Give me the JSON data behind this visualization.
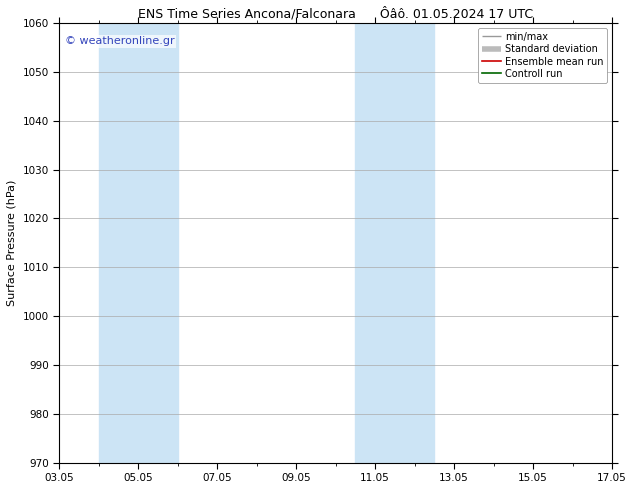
{
  "title": "ENS Time Series Ancona/Falconara      Ôâô. 01.05.2024 17 UTC",
  "ylabel": "Surface Pressure (hPa)",
  "ylim": [
    970,
    1060
  ],
  "yticks": [
    970,
    980,
    990,
    1000,
    1010,
    1020,
    1030,
    1040,
    1050,
    1060
  ],
  "xtick_labels": [
    "03.05",
    "05.05",
    "07.05",
    "09.05",
    "11.05",
    "13.05",
    "15.05",
    "17.05"
  ],
  "xtick_positions": [
    0,
    2,
    4,
    6,
    8,
    10,
    12,
    14
  ],
  "xlim": [
    0,
    14
  ],
  "shaded_bands": [
    {
      "x_start": 1.0,
      "x_end": 3.0,
      "color": "#cce4f5"
    },
    {
      "x_start": 7.5,
      "x_end": 9.5,
      "color": "#cce4f5"
    }
  ],
  "watermark_text": "© weatheronline.gr",
  "watermark_color": "#3344bb",
  "watermark_fontsize": 8,
  "legend_entries": [
    {
      "label": "min/max",
      "color": "#999999",
      "lw": 1.0
    },
    {
      "label": "Standard deviation",
      "color": "#bbbbbb",
      "lw": 4
    },
    {
      "label": "Ensemble mean run",
      "color": "#cc0000",
      "lw": 1.2
    },
    {
      "label": "Controll run",
      "color": "#006600",
      "lw": 1.2
    }
  ],
  "bg_color": "#ffffff",
  "plot_bg_color": "#ffffff",
  "grid_color": "#aaaaaa",
  "title_fontsize": 9,
  "axis_label_fontsize": 8,
  "tick_fontsize": 7.5,
  "legend_fontsize": 7
}
